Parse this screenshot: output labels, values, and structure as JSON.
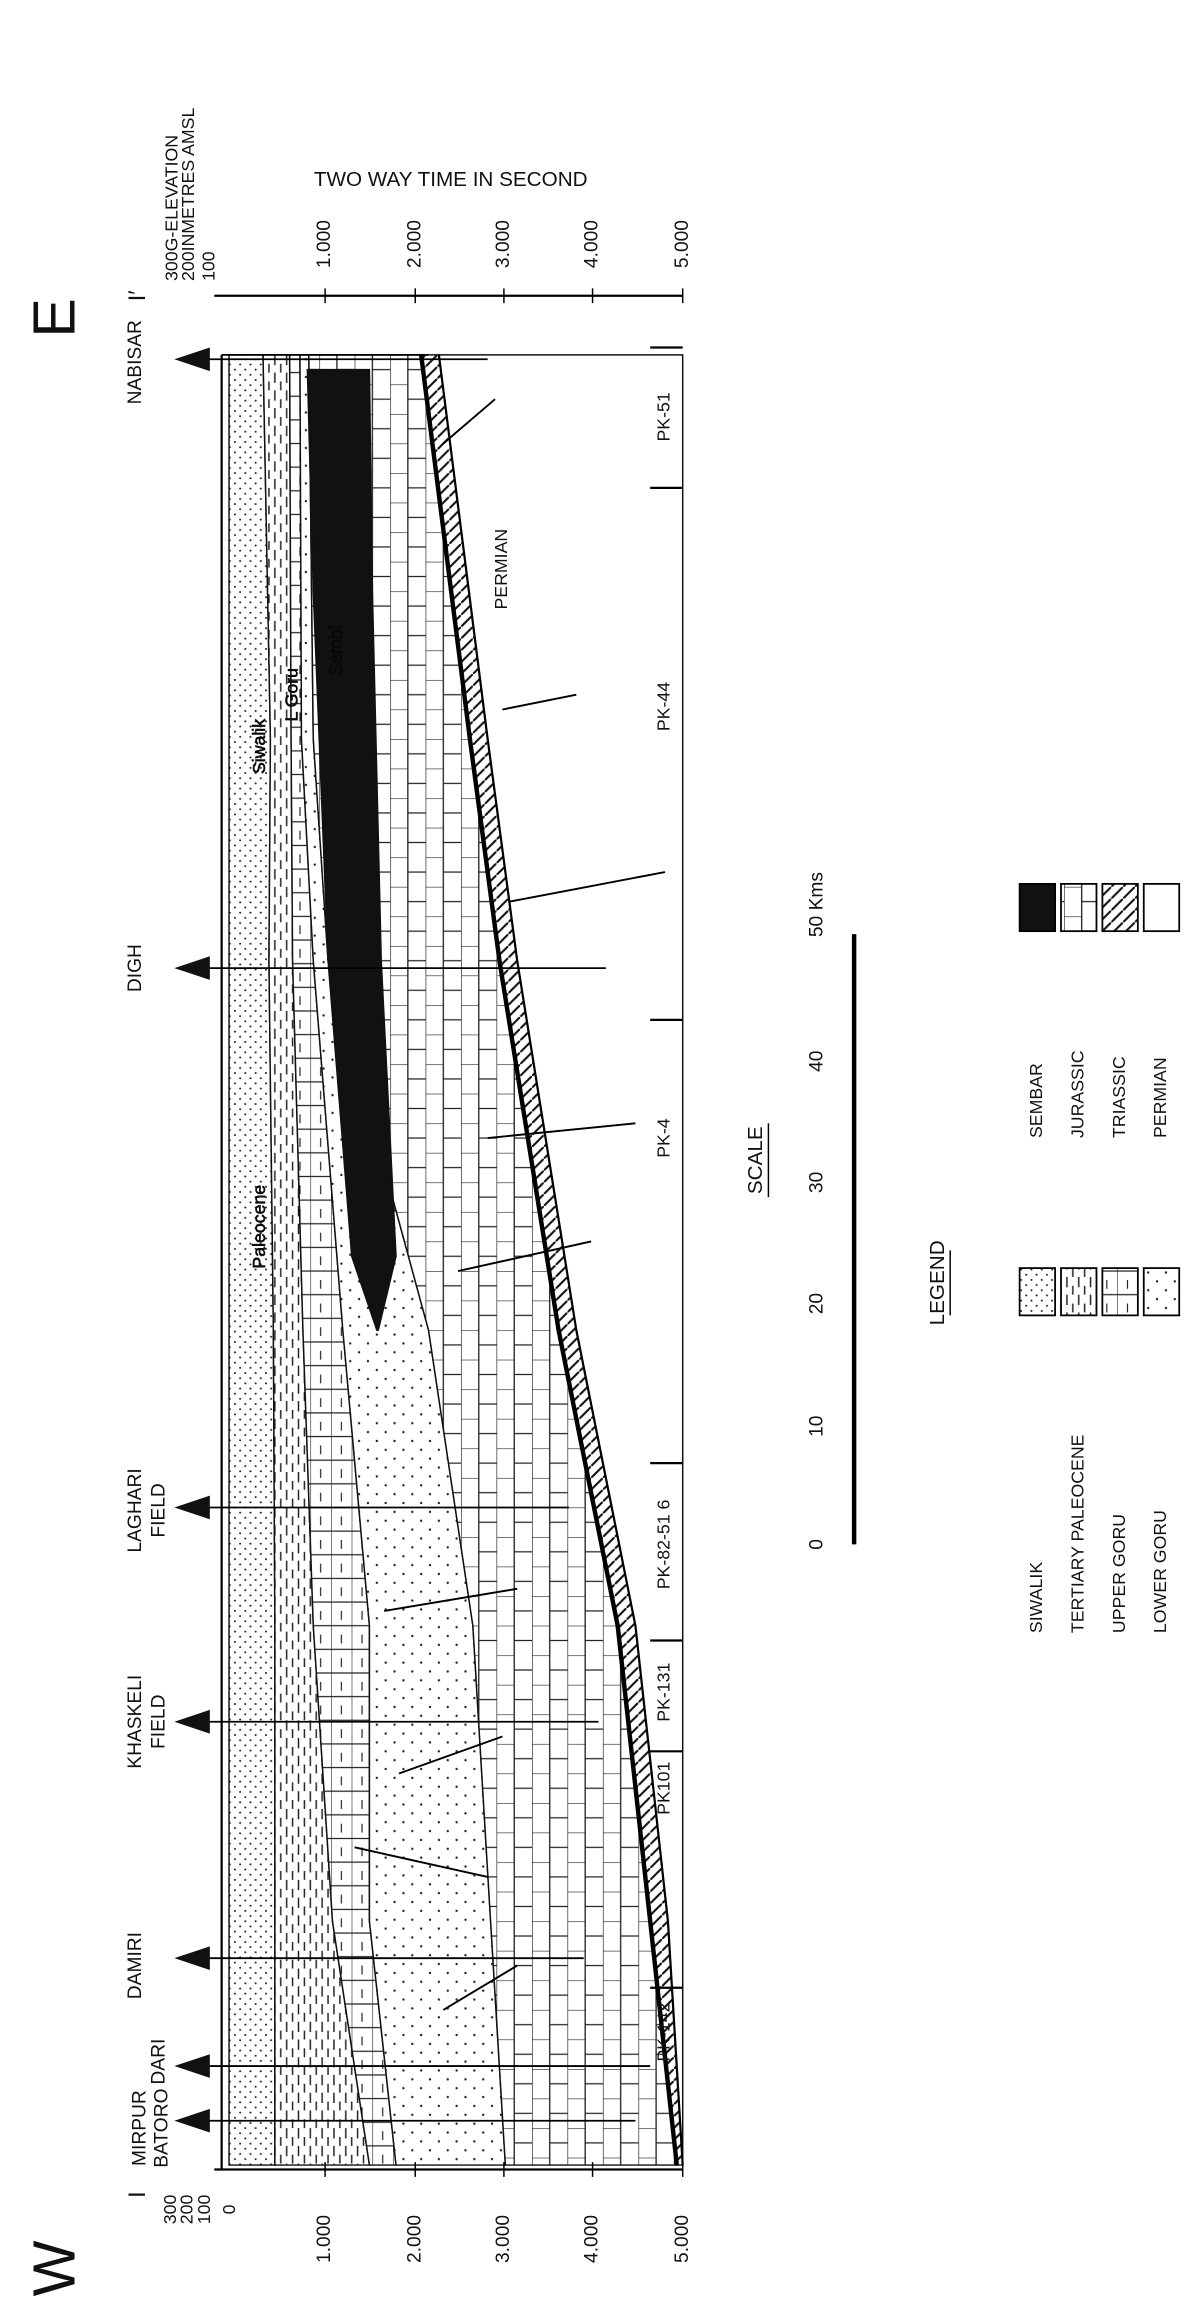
{
  "header": {
    "west": "W",
    "east": "E"
  },
  "section_markers": {
    "start": "I",
    "end": "I′"
  },
  "time_axis": {
    "title": "TWO WAY TIME IN SECOND",
    "ticks": [
      "1.000",
      "2.000",
      "3.000",
      "4.000",
      "5.000"
    ]
  },
  "elevation_axis": {
    "lines": [
      "300G-ELEVATION",
      "200INMETRES AMSL",
      "100"
    ]
  },
  "left_axis": {
    "elevation_ticks": [
      "300",
      "200",
      "100",
      "0"
    ],
    "time_ticks": [
      "1.000",
      "2.000",
      "3.000",
      "4.000",
      "5.000"
    ]
  },
  "wells": [
    {
      "lines": [
        "MIRPUR",
        "BATORO"
      ]
    },
    {
      "lines": [
        "DARI"
      ]
    },
    {
      "lines": [
        "DAMIRI"
      ]
    },
    {
      "lines": [
        "KHASKELI",
        "FIELD"
      ]
    },
    {
      "lines": [
        "LAGHARI",
        "FIELD"
      ]
    },
    {
      "lines": [
        "DIGH"
      ]
    },
    {
      "lines": [
        "NABISAR"
      ]
    }
  ],
  "profiles": [
    "PK-142",
    "PK101",
    "PK-131",
    "PK-82-51 6",
    "PK-4",
    "PK-44",
    "PK-51"
  ],
  "formations": [
    "Siwalik",
    "L Goru",
    "Sembl",
    "Paleocene",
    "PERMIAN"
  ],
  "scale": {
    "title": "SCALE",
    "ticks": [
      "0",
      "10",
      "20",
      "30",
      "40",
      "50 Kms"
    ]
  },
  "legend": {
    "title": "LEGEND",
    "items": [
      "SIWALIK",
      "TERTIARY PALEOCENE",
      "UPPER GORU",
      "LOWER GORU",
      "SEMBAR",
      "JURASSIC",
      "TRIASSIC",
      "PERMIAN"
    ]
  }
}
